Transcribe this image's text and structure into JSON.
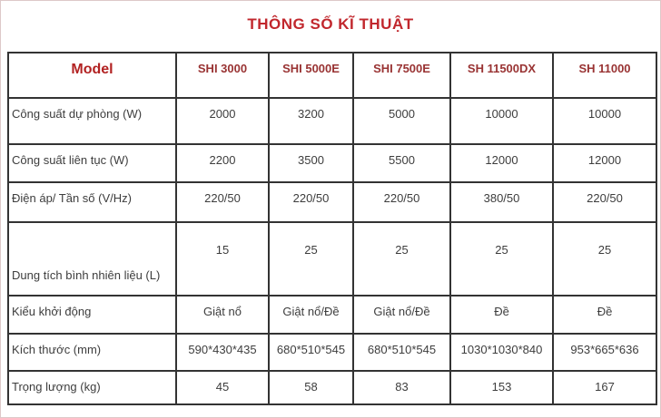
{
  "title": "THÔNG SỐ KĨ THUẬT",
  "table": {
    "header": [
      "Model",
      "SHI 3000",
      "SHI 5000E",
      "SHI 7500E",
      "SH 11500DX",
      "SH 11000"
    ],
    "rows": [
      {
        "label": "Công suất dự phòng (W)",
        "values": [
          "2000",
          "3200",
          "5000",
          "10000",
          "10000"
        ]
      },
      {
        "label": "Công suất liên tục (W)",
        "values": [
          "2200",
          "3500",
          "5500",
          "12000",
          "12000"
        ]
      },
      {
        "label": "Điện áp/ Tần số (V/Hz)",
        "values": [
          "220/50",
          "220/50",
          "220/50",
          "380/50",
          "220/50"
        ]
      },
      {
        "label": "Dung tích bình nhiên liệu (L)",
        "values": [
          "15",
          "25",
          "25",
          "25",
          "25"
        ]
      },
      {
        "label": "Kiểu khởi động",
        "values": [
          "Giật nổ",
          "Giật nổ/Đề",
          "Giật nổ/Đề",
          "Đề",
          "Đề"
        ]
      },
      {
        "label": "Kích thước (mm)",
        "values": [
          "590*430*435",
          "680*510*545",
          "680*510*545",
          "1030*1030*840",
          "953*665*636"
        ]
      },
      {
        "label": "Trọng lượng (kg)",
        "values": [
          "45",
          "58",
          "83",
          "153",
          "167"
        ]
      }
    ]
  },
  "colors": {
    "title_red": "#c1272d",
    "model_red": "#b22222",
    "model_name_red": "#993333",
    "body_text": "#3d3d3d",
    "table_border": "#333333",
    "outer_border": "#ddc9c9"
  }
}
